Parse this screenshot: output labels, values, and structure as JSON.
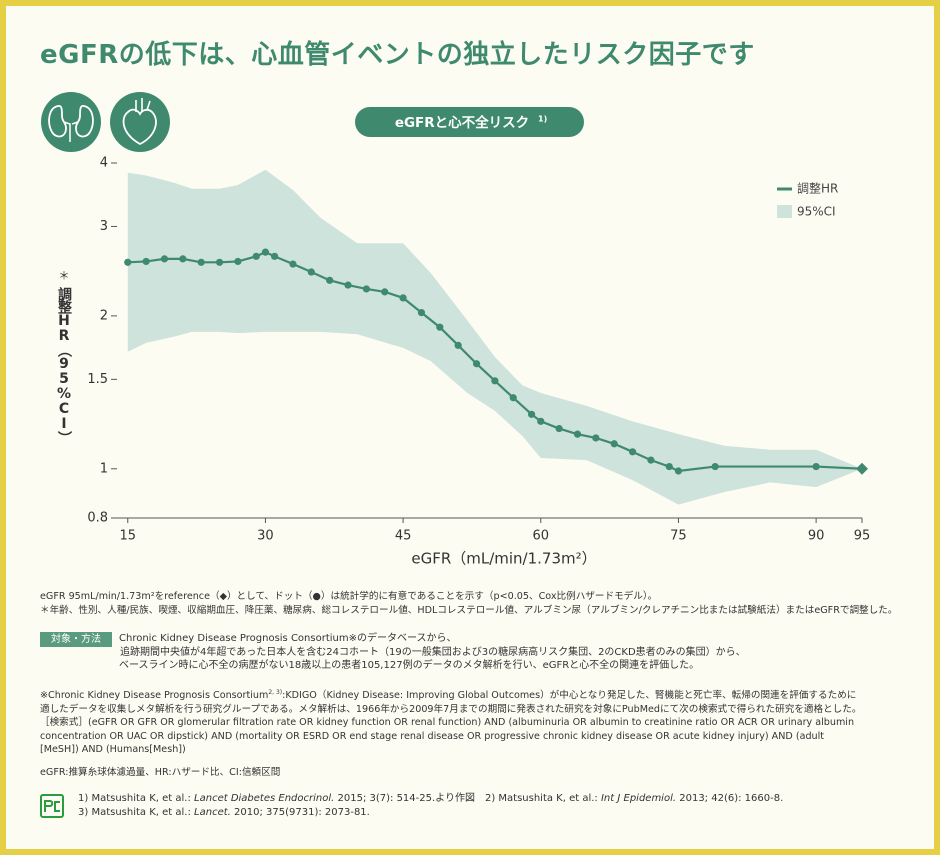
{
  "header": {
    "title": "eGFRの低下は、心血管イベントの独立したリスク因子です"
  },
  "chart_data": {
    "type": "line",
    "title": "eGFRと心不全リスク",
    "title_ref": "1)",
    "x_label": "eGFR（mL/min/1.73m²）",
    "y_label": "調整HR（95%CI）",
    "y_label_mark": "＊",
    "xlim": [
      13.5,
      95
    ],
    "xticks": [
      15,
      30,
      45,
      60,
      75,
      90,
      95
    ],
    "ylim": [
      0.8,
      4
    ],
    "yticks": [
      0.8,
      1,
      1.5,
      2,
      3,
      4
    ],
    "y_scale": "log",
    "legend": "upper right",
    "x": [
      15,
      17,
      19,
      21,
      23,
      25,
      27,
      29,
      30,
      31,
      33,
      35,
      37,
      39,
      41,
      43,
      45,
      47,
      49,
      51,
      53,
      55,
      57,
      59,
      60,
      62,
      64,
      66,
      68,
      70,
      72,
      74,
      75,
      79,
      90,
      95
    ],
    "series": [
      {
        "name": "調整HR",
        "color": "#3f8a6e",
        "values": [
          2.55,
          2.56,
          2.59,
          2.59,
          2.55,
          2.55,
          2.56,
          2.62,
          2.67,
          2.62,
          2.53,
          2.44,
          2.35,
          2.3,
          2.26,
          2.23,
          2.17,
          2.03,
          1.9,
          1.75,
          1.61,
          1.49,
          1.38,
          1.28,
          1.24,
          1.2,
          1.17,
          1.15,
          1.12,
          1.08,
          1.04,
          1.01,
          0.99,
          1.01,
          1.01,
          1
        ]
      }
    ],
    "ci": {
      "name": "95%CI",
      "color": "#cde3dc",
      "x": [
        15,
        17,
        20,
        22,
        25,
        27,
        30,
        33,
        36,
        40,
        45,
        48,
        52,
        55,
        58,
        60,
        65,
        70,
        75,
        80,
        85,
        90,
        95
      ],
      "upper": [
        3.83,
        3.78,
        3.66,
        3.56,
        3.56,
        3.62,
        3.88,
        3.54,
        3.12,
        2.78,
        2.78,
        2.43,
        1.96,
        1.66,
        1.46,
        1.41,
        1.33,
        1.24,
        1.17,
        1.11,
        1.09,
        1.09,
        1
      ],
      "lower": [
        1.7,
        1.77,
        1.82,
        1.86,
        1.86,
        1.85,
        1.86,
        1.86,
        1.86,
        1.84,
        1.73,
        1.63,
        1.41,
        1.3,
        1.16,
        1.05,
        1.04,
        0.95,
        0.85,
        0.9,
        0.94,
        0.92,
        1
      ]
    }
  },
  "notes": [
    "eGFR 95mL/min/1.73m²をreference（◆）として、ドット（●）は統計学的に有意であることを示す（p<0.05、Cox比例ハザードモデル）。",
    "＊年齢、性別、人種/民族、喫煙、収縮期血圧、降圧薬、糖尿病、総コレステロール値、HDLコレステロール値、アルブミン尿（アルブミン/クレアチニン比または試験紙法）またはeGFRで調整した。"
  ],
  "method": {
    "label": "対象・方法",
    "lines": [
      "Chronic Kidney Disease Prognosis Consortium※のデータベースから、",
      "追跡期間中央値が4年超であった日本人を含む24コホート（19の一般集団および3の糖尿病高リスク集団、2のCKD患者のみの集団）から、",
      "ベースライン時に心不全の病歴がない18歳以上の患者105,127例のデータのメタ解析を行い、eGFRと心不全の関連を評価した。"
    ]
  },
  "consortium": {
    "lead": "※Chronic Kidney Disease Prognosis Consortium",
    "ref": "2, 3)",
    "lines": [
      ":KDIGO（Kidney Disease: Improving Global Outcomes）が中心となり発足した、腎機能と死亡率、転帰の関連を評価するために",
      "適したデータを収集しメタ解析を行う研究グループである。メタ解析は、1966年から2009年7月までの期間に発表された研究を対象にPubMedにて次の検索式で得られた研究を適格とした。",
      "［検索式］(eGFR OR GFR OR glomerular filtration rate OR kidney function OR renal function) AND (albuminuria OR albumin to creatinine ratio OR ACR OR urinary albumin",
      "concentration OR UAC OR dipstick) AND (mortality OR ESRD OR end stage renal disease OR progressive chronic kidney disease OR acute kidney injury) AND (adult",
      "[MeSH]) AND (Humans[Mesh])"
    ]
  },
  "abbreviations": "eGFR:推算糸球体濾過量、HR:ハザード比、CI:信頼区間",
  "references": [
    [
      "1) Matsushita K, et al.: ",
      "Lancet Diabetes Endocrinol.",
      " 2015; 3(7): 514-25.より作図　2) Matsushita K, et al.: ",
      "Int J Epidemiol.",
      " 2013; 42(6): 1660-8."
    ],
    [
      "3) Matsushita K, et al.: ",
      "Lancet.",
      " 2010; 375(9731): 2073-81."
    ]
  ]
}
